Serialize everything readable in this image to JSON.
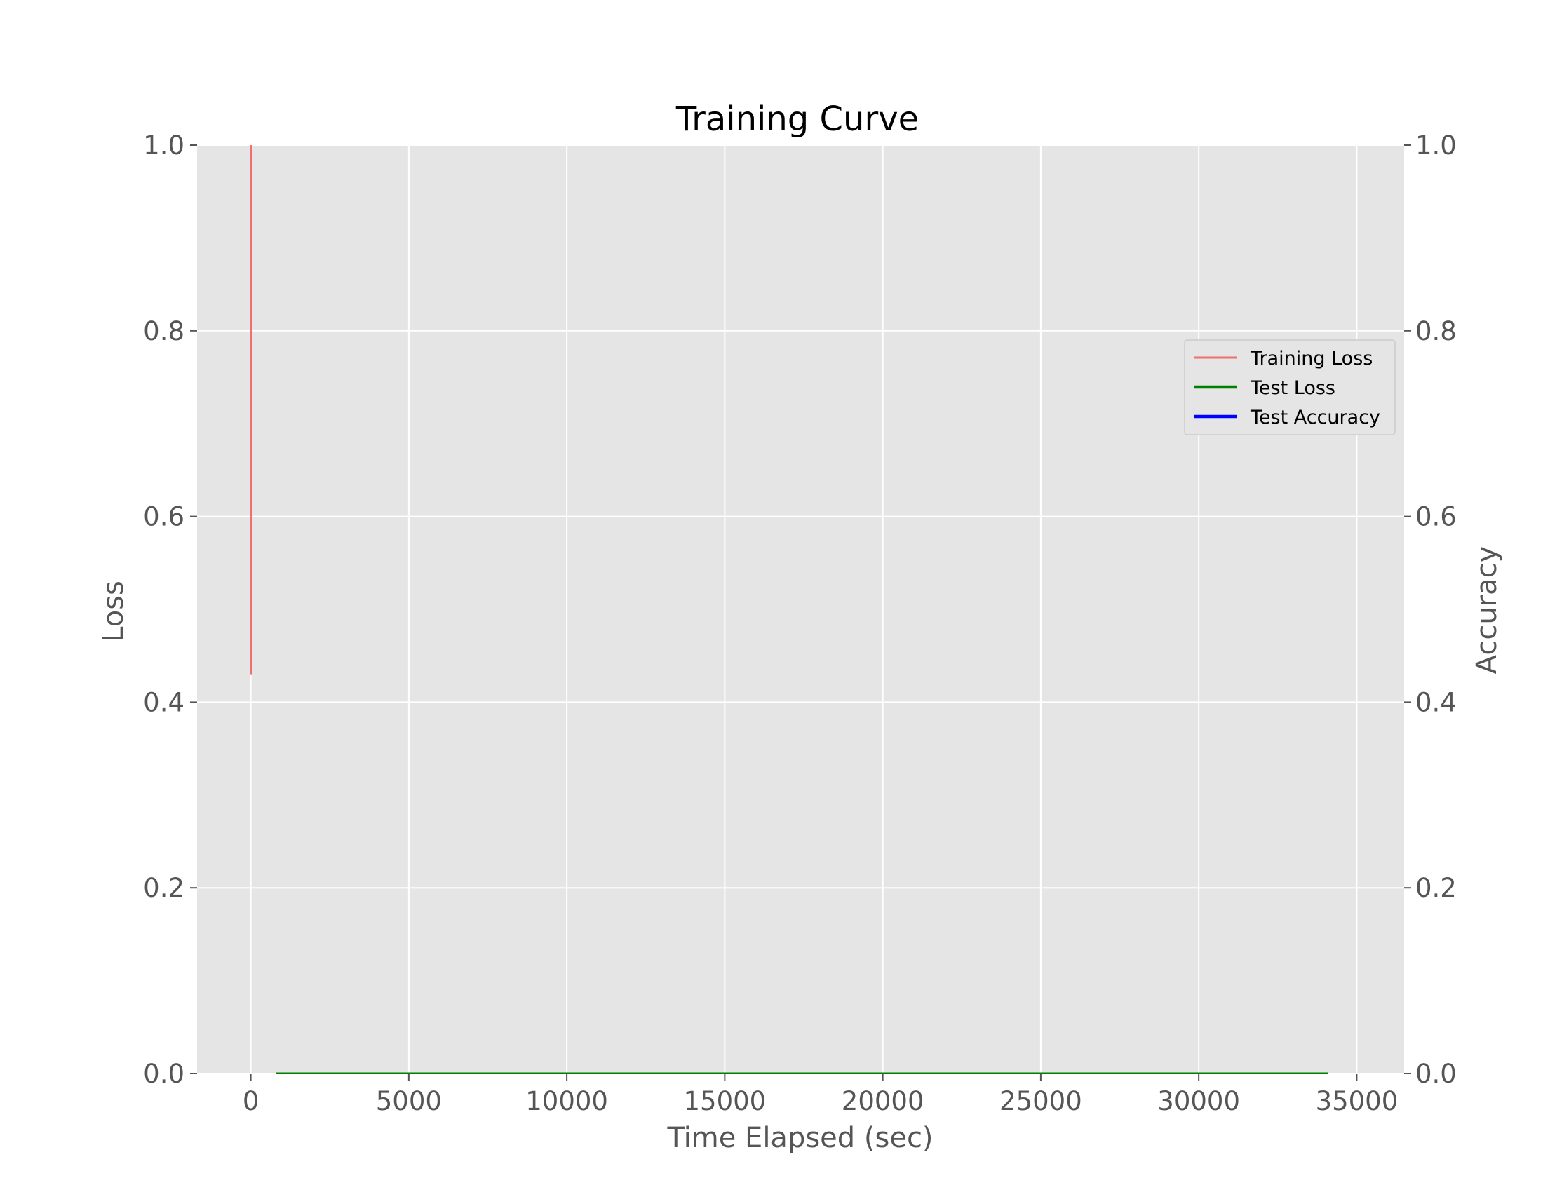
{
  "chart_data": {
    "type": "line",
    "title": "Training Curve",
    "xlabel": "Time Elapsed (sec)",
    "ylabel": "Loss",
    "y2label": "Accuracy",
    "xlim": [
      -1700,
      36500
    ],
    "ylim": [
      0,
      1
    ],
    "y2lim": [
      0,
      1
    ],
    "xticks": [
      0,
      5000,
      10000,
      15000,
      20000,
      25000,
      30000,
      35000
    ],
    "xtick_labels": [
      "0",
      "5000",
      "10000",
      "15000",
      "20000",
      "25000",
      "30000",
      "35000"
    ],
    "yticks": [
      0,
      0.2,
      0.4,
      0.6,
      0.8,
      1.0
    ],
    "ytick_labels": [
      "0.0",
      "0.2",
      "0.4",
      "0.6",
      "0.8",
      "1.0"
    ],
    "y2ticks": [
      0,
      0.2,
      0.4,
      0.6,
      0.8,
      1.0
    ],
    "y2tick_labels": [
      "0.0",
      "0.2",
      "0.4",
      "0.6",
      "0.8",
      "1.0"
    ],
    "grid": true,
    "legend_position": "center-right",
    "background": "#e5e5e5",
    "series": [
      {
        "name": "Training Loss",
        "axis": "left",
        "color": "#f07070",
        "points": [
          [
            0,
            1.05
          ],
          [
            0,
            0.8
          ],
          [
            0,
            0.6
          ],
          [
            0,
            0.43
          ]
        ]
      },
      {
        "name": "Test Loss",
        "axis": "left",
        "color": "#008000",
        "points": [
          [
            800,
            0.0
          ],
          [
            34100,
            0.0
          ]
        ]
      },
      {
        "name": "Test Accuracy",
        "axis": "right",
        "color": "#0000ff",
        "points": []
      }
    ]
  }
}
